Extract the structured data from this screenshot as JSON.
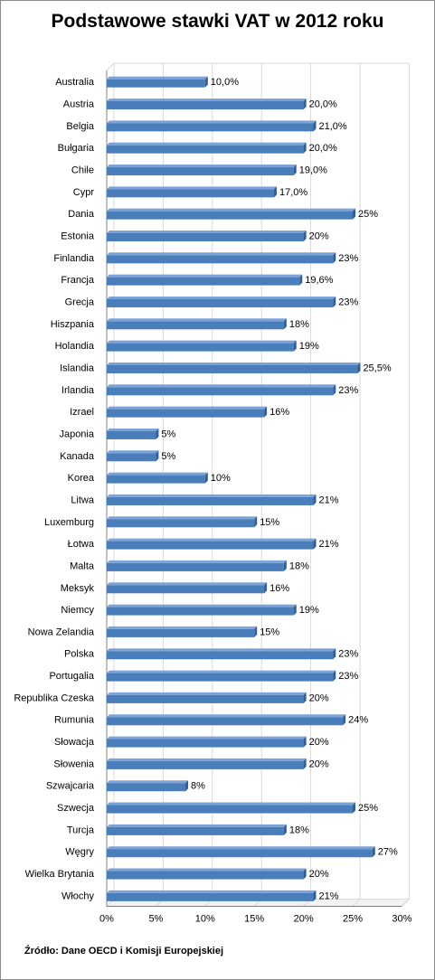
{
  "title": "Podstawowe stawki VAT w 2012 roku",
  "source": "Źródło: Dane OECD i Komisji  Europejskiej",
  "colors": {
    "bar": "#4a7ebb",
    "bar_top": "#7ba3d8",
    "bar_dark": "#2f5e9a",
    "grid": "#d9d9d9",
    "axis": "#808080"
  },
  "chart_data": {
    "type": "bar",
    "orientation": "horizontal",
    "title": "Podstawowe stawki VAT w 2012 roku",
    "categories": [
      "Australia",
      "Austria",
      "Belgia",
      "Bułgaria",
      "Chile",
      "Cypr",
      "Dania",
      "Estonia",
      "Finlandia",
      "Francja",
      "Grecja",
      "Hiszpania",
      "Holandia",
      "Islandia",
      "Irlandia",
      "Izrael",
      "Japonia",
      "Kanada",
      "Korea",
      "Litwa",
      "Luxemburg",
      "Łotwa",
      "Malta",
      "Meksyk",
      "Niemcy",
      "Nowa Zelandia",
      "Polska",
      "Portugalia",
      "Republika Czeska",
      "Rumunia",
      "Słowacja",
      "Słowenia",
      "Szwajcaria",
      "Szwecja",
      "Turcja",
      "Węgry",
      "Wielka Brytania",
      "Włochy"
    ],
    "values": [
      10,
      20,
      21,
      20,
      19,
      17,
      25,
      20,
      23,
      19.6,
      23,
      18,
      19,
      25.5,
      23,
      16,
      5,
      5,
      10,
      21,
      15,
      21,
      18,
      16,
      19,
      15,
      23,
      23,
      20,
      24,
      20,
      20,
      8,
      25,
      18,
      27,
      20,
      21
    ],
    "data_labels": [
      "10,0%",
      "20,0%",
      "21,0%",
      "20,0%",
      "19,0%",
      "17,0%",
      "25%",
      "20%",
      "23%",
      "19,6%",
      "23%",
      "18%",
      "19%",
      "25,5%",
      "23%",
      "16%",
      "5%",
      "5%",
      "10%",
      "21%",
      "15%",
      "21%",
      "18%",
      "16%",
      "19%",
      "15%",
      "23%",
      "23%",
      "20%",
      "24%",
      "20%",
      "20%",
      "8%",
      "25%",
      "18%",
      "27%",
      "20%",
      "21%"
    ],
    "xlim": [
      0,
      30
    ],
    "xticks": [
      "0%",
      "5%",
      "10%",
      "15%",
      "20%",
      "25%",
      "30%"
    ],
    "grid": true,
    "legend": "none"
  }
}
